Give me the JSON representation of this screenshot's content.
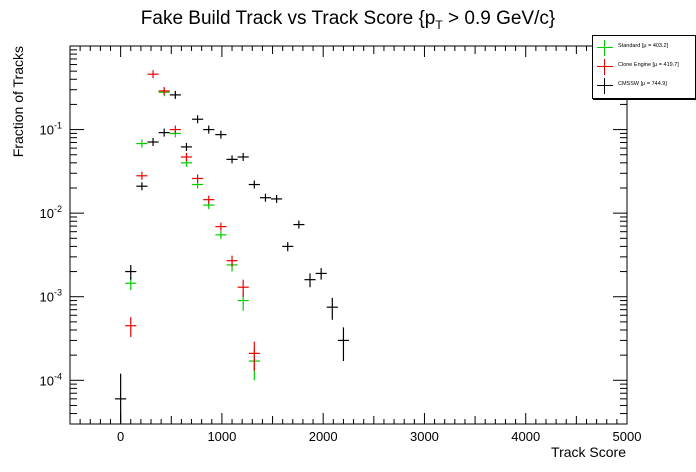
{
  "chart_data": {
    "type": "scatter",
    "title": "Fake Build Track vs Track Score {p_T > 0.9 GeV/c}",
    "title_main": "Fake Build Track vs Track Score {p",
    "title_sub": "T",
    "title_tail": " > 0.9 GeV/c}",
    "xlabel": "Track Score",
    "ylabel": "Fraction of Tracks",
    "xlim": [
      -500,
      5000
    ],
    "ylim": [
      3e-05,
      1.0
    ],
    "yscale": "log",
    "x_ticks": [
      "0",
      "1000",
      "2000",
      "3000",
      "4000",
      "5000"
    ],
    "x_tick_values": [
      0,
      1000,
      2000,
      3000,
      4000,
      5000
    ],
    "y_ticks": [
      {
        "value": 0.0001,
        "base": "10",
        "exp": "-4"
      },
      {
        "value": 0.001,
        "base": "10",
        "exp": "-3"
      },
      {
        "value": 0.01,
        "base": "10",
        "exp": "-2"
      },
      {
        "value": 0.1,
        "base": "10",
        "exp": "-1"
      }
    ],
    "legend_position": "top-right",
    "grid": false,
    "bin_width": 110,
    "series": [
      {
        "name": "Standard  [μ = 403.2]",
        "color": "#00cc00",
        "points": [
          {
            "x": 100,
            "y": 0.00145,
            "ey": 0.00025
          },
          {
            "x": 210,
            "y": 0.068,
            "ey": 0.002
          },
          {
            "x": 430,
            "y": 0.28,
            "ey": 0.005
          },
          {
            "x": 540,
            "y": 0.09,
            "ey": 0.002
          },
          {
            "x": 650,
            "y": 0.04,
            "ey": 0.002
          },
          {
            "x": 760,
            "y": 0.022,
            "ey": 0.001
          },
          {
            "x": 870,
            "y": 0.0125,
            "ey": 0.001
          },
          {
            "x": 990,
            "y": 0.0055,
            "ey": 0.0006
          },
          {
            "x": 1100,
            "y": 0.0024,
            "ey": 0.0004
          },
          {
            "x": 1210,
            "y": 0.0009,
            "ey": 0.00022
          },
          {
            "x": 1320,
            "y": 0.00017,
            "ey": 7e-05
          }
        ]
      },
      {
        "name": "Clone Engine  [μ = 419.7]",
        "color": "#ee0000",
        "points": [
          {
            "x": 100,
            "y": 0.00045,
            "ey": 0.00012
          },
          {
            "x": 210,
            "y": 0.028,
            "ey": 0.0015
          },
          {
            "x": 320,
            "y": 0.46,
            "ey": 0.006
          },
          {
            "x": 430,
            "y": 0.29,
            "ey": 0.005
          },
          {
            "x": 540,
            "y": 0.1,
            "ey": 0.002
          },
          {
            "x": 650,
            "y": 0.047,
            "ey": 0.002
          },
          {
            "x": 760,
            "y": 0.026,
            "ey": 0.0012
          },
          {
            "x": 870,
            "y": 0.0145,
            "ey": 0.0009
          },
          {
            "x": 990,
            "y": 0.0069,
            "ey": 0.0007
          },
          {
            "x": 1100,
            "y": 0.0027,
            "ey": 0.0004
          },
          {
            "x": 1210,
            "y": 0.0013,
            "ey": 0.0003
          },
          {
            "x": 1320,
            "y": 0.00021,
            "ey": 8e-05
          }
        ]
      },
      {
        "name": "CMSSW  [μ = 744.9]",
        "color": "#000000",
        "points": [
          {
            "x": 0,
            "y": 6e-05,
            "ey": 6e-05
          },
          {
            "x": 100,
            "y": 0.002,
            "ey": 0.0004
          },
          {
            "x": 210,
            "y": 0.021,
            "ey": 0.0012
          },
          {
            "x": 320,
            "y": 0.071,
            "ey": 0.002
          },
          {
            "x": 430,
            "y": 0.092,
            "ey": 0.002
          },
          {
            "x": 540,
            "y": 0.26,
            "ey": 0.005
          },
          {
            "x": 650,
            "y": 0.062,
            "ey": 0.002
          },
          {
            "x": 760,
            "y": 0.133,
            "ey": 0.003
          },
          {
            "x": 870,
            "y": 0.1,
            "ey": 0.002
          },
          {
            "x": 990,
            "y": 0.087,
            "ey": 0.002
          },
          {
            "x": 1100,
            "y": 0.044,
            "ey": 0.0015
          },
          {
            "x": 1210,
            "y": 0.047,
            "ey": 0.0015
          },
          {
            "x": 1320,
            "y": 0.022,
            "ey": 0.001
          },
          {
            "x": 1430,
            "y": 0.0153,
            "ey": 0.0009
          },
          {
            "x": 1540,
            "y": 0.0148,
            "ey": 0.0009
          },
          {
            "x": 1650,
            "y": 0.004,
            "ey": 0.0005
          },
          {
            "x": 1760,
            "y": 0.0073,
            "ey": 0.0007
          },
          {
            "x": 1870,
            "y": 0.0016,
            "ey": 0.0003
          },
          {
            "x": 1980,
            "y": 0.0019,
            "ey": 0.0003
          },
          {
            "x": 2090,
            "y": 0.00075,
            "ey": 0.00022
          },
          {
            "x": 2200,
            "y": 0.0003,
            "ey": 0.00013
          }
        ]
      }
    ]
  }
}
